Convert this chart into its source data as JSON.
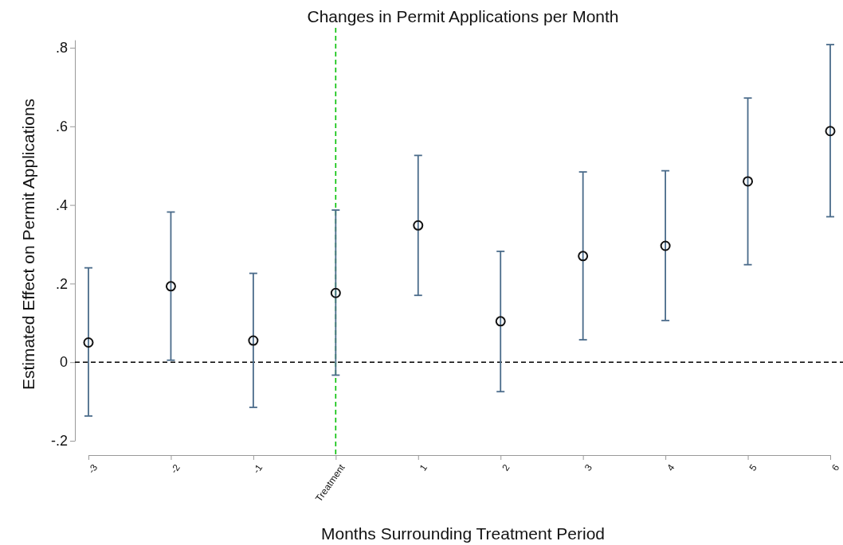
{
  "chart_data": {
    "type": "scatter",
    "title": "Changes in Permit Applications per Month",
    "xlabel": "Months Surrounding Treatment Period",
    "ylabel": "Estimated Effect on Permit Applications",
    "categories": [
      "-3",
      "-2",
      "-1",
      "Treatment",
      "1",
      "2",
      "3",
      "4",
      "5",
      "6"
    ],
    "series": [
      {
        "color": "#111111",
        "values": [
          0.05,
          0.193,
          0.055,
          0.176,
          0.348,
          0.104,
          0.27,
          0.296,
          0.46,
          0.588
        ],
        "errors": [
          [
            -0.137,
            0.24
          ],
          [
            0.005,
            0.382
          ],
          [
            -0.115,
            0.226
          ],
          [
            -0.033,
            0.387
          ],
          [
            0.17,
            0.526
          ],
          [
            -0.075,
            0.282
          ],
          [
            0.057,
            0.484
          ],
          [
            0.106,
            0.487
          ],
          [
            0.248,
            0.672
          ],
          [
            0.37,
            0.808
          ]
        ]
      }
    ],
    "ylim": [
      -0.2,
      0.82
    ],
    "yticks": [
      {
        "value": -0.2,
        "label": "-.2"
      },
      0,
      {
        "value": 0.2,
        "label": ".2"
      },
      {
        "value": 0.4,
        "label": ".4"
      },
      {
        "value": 0.6,
        "label": ".6"
      },
      {
        "value": 0.8,
        "label": ".8"
      }
    ],
    "ref_lines": [
      {
        "axis": "x",
        "value": "Treatment",
        "color": "#00c000",
        "line_style": "dashed"
      },
      {
        "axis": "y",
        "value": 0,
        "color": "#000000",
        "line_style": "dashed"
      }
    ],
    "marker": "circle",
    "grid": false
  }
}
